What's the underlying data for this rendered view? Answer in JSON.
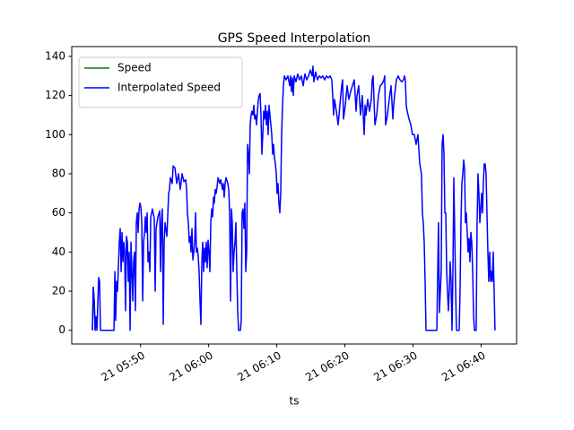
{
  "chart_data": {
    "type": "line",
    "title": "GPS Speed Interpolation",
    "x_label": "ts",
    "xlim": [
      "05:39:54",
      "06:45:13"
    ],
    "xticks": [
      {
        "value": "05:50:00",
        "label": "21 05:50"
      },
      {
        "value": "06:00:00",
        "label": "21 06:00"
      },
      {
        "value": "06:10:00",
        "label": "21 06:10"
      },
      {
        "value": "06:20:00",
        "label": "21 06:20"
      },
      {
        "value": "06:30:00",
        "label": "21 06:30"
      },
      {
        "value": "06:40:00",
        "label": "21 06:40"
      }
    ],
    "ylim": [
      -7,
      145
    ],
    "yticks": [
      0,
      20,
      40,
      60,
      80,
      100,
      120,
      140
    ],
    "grid": false,
    "legend": "upper left",
    "series": [
      {
        "name": "Speed",
        "color": "#008000",
        "x": [
          "05:42:56",
          "05:43:04",
          "05:43:12",
          "05:43:20"
        ],
        "values": [
          0,
          22,
          15,
          0
        ]
      },
      {
        "name": "Interpolated Speed",
        "color": "#0000ff",
        "x": [
          "05:42:56",
          "05:43:04",
          "05:43:12",
          "05:43:20",
          "05:43:28",
          "05:43:36",
          "05:43:51",
          "05:43:59",
          "05:44:07",
          "05:46:06",
          "05:46:14",
          "05:46:21",
          "05:46:29",
          "05:46:37",
          "05:46:53",
          "05:47:01",
          "05:47:09",
          "05:47:17",
          "05:47:25",
          "05:47:33",
          "05:47:40",
          "05:47:48",
          "05:47:56",
          "05:48:04",
          "05:48:12",
          "05:48:20",
          "05:48:28",
          "05:48:36",
          "05:48:52",
          "05:48:59",
          "05:49:07",
          "05:49:15",
          "05:49:23",
          "05:49:31",
          "05:49:39",
          "05:49:47",
          "05:49:55",
          "05:50:03",
          "05:50:11",
          "05:50:19",
          "05:50:27",
          "05:50:35",
          "05:50:42",
          "05:50:50",
          "05:50:58",
          "05:51:06",
          "05:51:14",
          "05:51:22",
          "05:51:30",
          "05:51:45",
          "05:52:01",
          "05:52:09",
          "05:52:17",
          "05:52:33",
          "05:52:49",
          "05:52:56",
          "05:53:04",
          "05:53:12",
          "05:53:20",
          "05:53:28",
          "05:53:36",
          "05:53:52",
          "05:54:08",
          "05:54:15",
          "05:54:23",
          "05:54:39",
          "05:54:47",
          "05:55:03",
          "05:55:19",
          "05:55:34",
          "05:55:50",
          "05:56:06",
          "05:56:22",
          "05:56:38",
          "05:56:46",
          "05:56:53",
          "05:57:01",
          "05:57:09",
          "05:57:17",
          "05:57:25",
          "05:57:33",
          "05:57:41",
          "05:57:49",
          "05:57:57",
          "05:58:05",
          "05:58:12",
          "05:58:20",
          "05:58:28",
          "05:58:36",
          "05:58:44",
          "05:58:52",
          "05:59:00",
          "05:59:08",
          "05:59:16",
          "05:59:24",
          "05:59:31",
          "05:59:39",
          "05:59:47",
          "05:59:55",
          "06:00:03",
          "06:00:11",
          "06:00:19",
          "06:00:27",
          "06:00:35",
          "06:00:43",
          "06:00:50",
          "06:00:58",
          "06:01:06",
          "06:01:14",
          "06:01:22",
          "06:01:38",
          "06:01:46",
          "06:02:02",
          "06:02:09",
          "06:02:17",
          "06:02:25",
          "06:02:33",
          "06:02:49",
          "06:02:57",
          "06:03:05",
          "06:03:13",
          "06:03:21",
          "06:03:28",
          "06:03:36",
          "06:03:44",
          "06:03:52",
          "06:04:00",
          "06:04:08",
          "06:04:16",
          "06:04:24",
          "06:04:40",
          "06:04:47",
          "06:04:55",
          "06:05:03",
          "06:05:11",
          "06:05:19",
          "06:05:27",
          "06:05:35",
          "06:05:43",
          "06:05:51",
          "06:05:59",
          "06:06:06",
          "06:06:14",
          "06:06:22",
          "06:06:30",
          "06:06:38",
          "06:06:46",
          "06:06:54",
          "06:07:02",
          "06:07:10",
          "06:07:18",
          "06:07:25",
          "06:07:33",
          "06:07:41",
          "06:07:49",
          "06:07:57",
          "06:08:05",
          "06:08:13",
          "06:08:21",
          "06:08:29",
          "06:08:37",
          "06:08:44",
          "06:08:52",
          "06:09:00",
          "06:09:08",
          "06:09:16",
          "06:09:24",
          "06:09:32",
          "06:09:40",
          "06:09:48",
          "06:09:56",
          "06:10:03",
          "06:10:11",
          "06:10:19",
          "06:10:27",
          "06:10:35",
          "06:10:43",
          "06:10:51",
          "06:10:59",
          "06:11:07",
          "06:11:22",
          "06:11:38",
          "06:11:54",
          "06:12:02",
          "06:12:10",
          "06:12:18",
          "06:12:26",
          "06:12:34",
          "06:12:49",
          "06:13:05",
          "06:13:21",
          "06:13:37",
          "06:13:53",
          "06:14:08",
          "06:14:24",
          "06:14:40",
          "06:14:56",
          "06:15:12",
          "06:15:19",
          "06:15:27",
          "06:15:43",
          "06:15:59",
          "06:16:15",
          "06:16:31",
          "06:16:46",
          "06:17:02",
          "06:17:18",
          "06:17:34",
          "06:17:50",
          "06:18:05",
          "06:18:13",
          "06:18:21",
          "06:18:29",
          "06:18:45",
          "06:19:01",
          "06:19:16",
          "06:19:32",
          "06:19:40",
          "06:19:48",
          "06:20:04",
          "06:20:20",
          "06:20:35",
          "06:20:51",
          "06:21:07",
          "06:21:23",
          "06:21:39",
          "06:21:47",
          "06:22:02",
          "06:22:18",
          "06:22:34",
          "06:22:42",
          "06:22:50",
          "06:22:58",
          "06:23:06",
          "06:23:21",
          "06:23:37",
          "06:23:53",
          "06:24:01",
          "06:24:09",
          "06:24:25",
          "06:24:40",
          "06:24:56",
          "06:25:12",
          "06:25:28",
          "06:25:44",
          "06:25:51",
          "06:25:59",
          "06:26:15",
          "06:26:31",
          "06:26:47",
          "06:27:03",
          "06:27:10",
          "06:27:18",
          "06:27:34",
          "06:27:50",
          "06:28:06",
          "06:28:22",
          "06:28:37",
          "06:28:45",
          "06:28:53",
          "06:29:01",
          "06:29:09",
          "06:29:25",
          "06:29:41",
          "06:29:56",
          "06:30:12",
          "06:30:28",
          "06:30:44",
          "06:31:00",
          "06:31:15",
          "06:31:23",
          "06:31:31",
          "06:31:39",
          "06:31:47",
          "06:31:55",
          "06:33:30",
          "06:33:38",
          "06:33:45",
          "06:33:53",
          "06:34:01",
          "06:34:09",
          "06:34:17",
          "06:34:25",
          "06:34:33",
          "06:34:41",
          "06:34:49",
          "06:34:57",
          "06:35:04",
          "06:35:12",
          "06:35:20",
          "06:35:28",
          "06:35:36",
          "06:35:44",
          "06:35:52",
          "06:36:00",
          "06:36:08",
          "06:36:16",
          "06:36:23",
          "06:36:47",
          "06:36:55",
          "06:37:03",
          "06:37:11",
          "06:37:19",
          "06:37:27",
          "06:37:35",
          "06:37:42",
          "06:37:50",
          "06:37:58",
          "06:38:06",
          "06:38:14",
          "06:38:22",
          "06:38:30",
          "06:38:38",
          "06:38:46",
          "06:38:54",
          "06:39:01",
          "06:39:17",
          "06:39:25",
          "06:39:33",
          "06:39:41",
          "06:39:49",
          "06:39:57",
          "06:40:05",
          "06:40:13",
          "06:40:20",
          "06:40:28",
          "06:40:36",
          "06:40:44",
          "06:40:52",
          "06:41:00",
          "06:41:08",
          "06:41:16",
          "06:41:24",
          "06:41:32",
          "06:41:39",
          "06:41:47",
          "06:41:55",
          "06:42:03"
        ],
        "values": [
          0,
          22,
          15,
          0,
          7,
          0,
          27,
          25,
          0,
          0,
          30,
          5,
          25,
          20,
          45,
          52,
          30,
          50,
          35,
          45,
          40,
          10,
          48,
          45,
          25,
          40,
          0,
          45,
          15,
          35,
          40,
          10,
          55,
          60,
          50,
          62,
          65,
          63,
          55,
          15,
          45,
          50,
          58,
          50,
          60,
          35,
          40,
          30,
          58,
          62,
          57,
          20,
          52,
          58,
          61,
          30,
          55,
          62,
          3,
          45,
          55,
          48,
          70,
          72,
          78,
          75,
          84,
          83,
          75,
          80,
          72,
          80,
          76,
          77,
          72,
          60,
          55,
          45,
          48,
          40,
          52,
          36,
          40,
          45,
          60,
          40,
          42,
          38,
          30,
          15,
          3,
          35,
          45,
          30,
          42,
          35,
          45,
          32,
          46,
          40,
          30,
          55,
          62,
          58,
          68,
          65,
          72,
          70,
          73,
          78,
          75,
          77,
          72,
          75,
          68,
          75,
          78,
          75,
          72,
          60,
          15,
          62,
          55,
          30,
          40,
          45,
          55,
          30,
          10,
          0,
          0,
          5,
          60,
          62,
          52,
          65,
          30,
          40,
          95,
          90,
          80,
          105,
          110,
          112,
          110,
          115,
          108,
          110,
          105,
          112,
          118,
          120,
          121,
          110,
          90,
          100,
          112,
          108,
          115,
          105,
          112,
          100,
          115,
          110,
          105,
          100,
          90,
          95,
          88,
          85,
          80,
          70,
          75,
          65,
          60,
          70,
          100,
          115,
          125,
          130,
          128,
          130,
          125,
          130,
          122,
          129,
          120,
          130,
          127,
          131,
          128,
          130,
          125,
          131,
          128,
          130,
          133,
          130,
          135,
          127,
          132,
          128,
          130,
          129,
          130,
          128,
          130,
          129,
          130,
          128,
          120,
          110,
          118,
          112,
          105,
          115,
          125,
          128,
          108,
          115,
          125,
          118,
          122,
          125,
          128,
          112,
          120,
          125,
          110,
          120,
          110,
          100,
          115,
          110,
          118,
          112,
          118,
          128,
          130,
          105,
          110,
          120,
          125,
          126,
          128,
          130,
          105,
          110,
          118,
          125,
          108,
          115,
          120,
          128,
          130,
          128,
          127,
          128,
          130,
          128,
          115,
          112,
          108,
          105,
          100,
          100,
          95,
          100,
          85,
          80,
          60,
          55,
          45,
          25,
          0,
          0,
          30,
          55,
          9,
          20,
          30,
          95,
          100,
          90,
          60,
          60,
          30,
          20,
          10,
          20,
          35,
          25,
          0,
          30,
          78,
          50,
          20,
          0,
          0,
          20,
          55,
          75,
          80,
          87,
          82,
          55,
          60,
          50,
          40,
          47,
          35,
          50,
          45,
          30,
          8,
          0,
          0,
          55,
          80,
          70,
          55,
          62,
          70,
          60,
          75,
          85,
          85,
          80,
          60,
          40,
          25,
          40,
          25,
          30,
          25,
          40,
          20,
          0
        ]
      }
    ]
  }
}
